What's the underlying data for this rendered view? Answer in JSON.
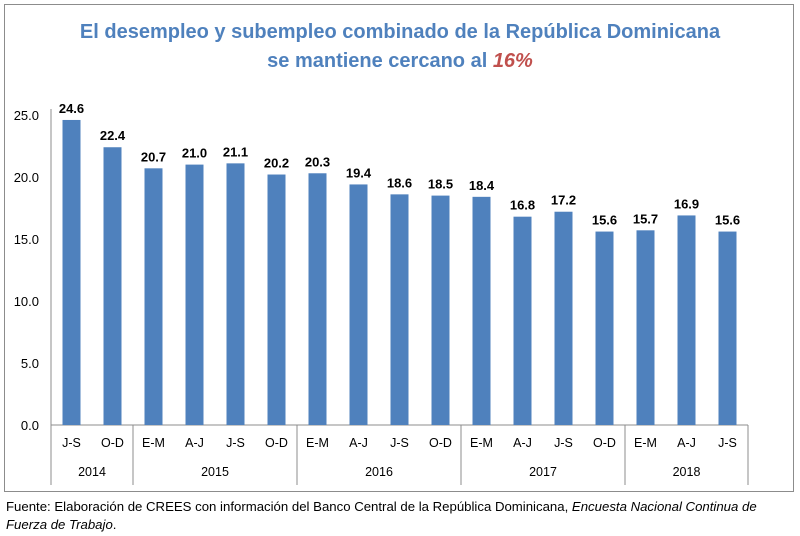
{
  "title": {
    "line1": "El desempleo y subempleo combinado de la República Dominicana",
    "line2_prefix": "se mantiene cercano al ",
    "line2_highlight": "16%"
  },
  "colors": {
    "title": "#4f81bd",
    "highlight": "#c0504d",
    "bar": "#4f81bd",
    "axis": "#8c8c8c",
    "text": "#000000"
  },
  "source": {
    "prefix": "Fuente: Elaboración de CREES con información del Banco Central de la República Dominicana, ",
    "italic": "Encuesta Nacional Continua de Fuerza de Trabajo",
    "suffix": "."
  },
  "chart_data": {
    "type": "bar",
    "title": "El desempleo y subempleo combinado de la República Dominicana se mantiene cercano al 16%",
    "xlabel": "",
    "ylabel": "",
    "ylim": [
      0,
      25
    ],
    "yticks": [
      "0.0",
      "5.0",
      "10.0",
      "15.0",
      "20.0",
      "25.0"
    ],
    "ytick_values": [
      0,
      5,
      10,
      15,
      20,
      25
    ],
    "grid": false,
    "legend": "none",
    "categories": [
      "J-S",
      "O-D",
      "E-M",
      "A-J",
      "J-S",
      "O-D",
      "E-M",
      "A-J",
      "J-S",
      "O-D",
      "E-M",
      "A-J",
      "J-S",
      "O-D",
      "E-M",
      "A-J",
      "J-S"
    ],
    "groups": [
      {
        "label": "2014",
        "count": 2
      },
      {
        "label": "2015",
        "count": 4
      },
      {
        "label": "2016",
        "count": 4
      },
      {
        "label": "2017",
        "count": 4
      },
      {
        "label": "2018",
        "count": 3
      }
    ],
    "values": [
      24.6,
      22.4,
      20.7,
      21.0,
      21.1,
      20.2,
      20.3,
      19.4,
      18.6,
      18.5,
      18.4,
      16.8,
      17.2,
      15.6,
      15.7,
      16.9,
      15.6
    ],
    "data_labels": [
      "24.6",
      "22.4",
      "20.7",
      "21.0",
      "21.1",
      "20.2",
      "20.3",
      "19.4",
      "18.6",
      "18.5",
      "18.4",
      "16.8",
      "17.2",
      "15.6",
      "15.7",
      "16.9",
      "15.6"
    ]
  }
}
